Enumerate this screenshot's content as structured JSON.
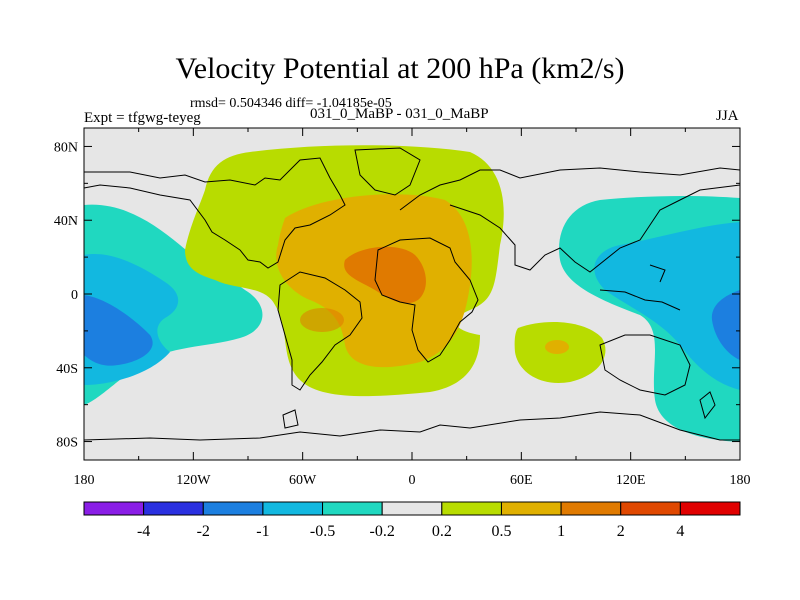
{
  "header": {
    "title": "Velocity Potential at 200 hPa (km2/s)",
    "stats": "rmsd= 0.504346 diff= -1.04185e-05",
    "expt": "Expt = tfgwg-teyeg",
    "cases": "031_0_MaBP - 031_0_MaBP",
    "season": "JJA"
  },
  "chart_data": {
    "type": "contour-map",
    "title": "Velocity Potential at 200 hPa (km2/s)",
    "units": "km2/s",
    "x_axis": {
      "range": [
        -180,
        180
      ],
      "ticks": [
        -180,
        -120,
        -60,
        0,
        60,
        120,
        180
      ],
      "tick_labels": [
        "180",
        "120W",
        "60W",
        "0",
        "60E",
        "120E",
        "180"
      ]
    },
    "y_axis": {
      "range": [
        -90,
        90
      ],
      "ticks": [
        80,
        40,
        0,
        -40,
        -80
      ],
      "tick_labels": [
        "80N",
        "40N",
        "0",
        "40S",
        "80S"
      ]
    },
    "colorbar": {
      "levels": [
        -4,
        -2,
        -1,
        -0.5,
        -0.2,
        0.2,
        0.5,
        1,
        2,
        4
      ],
      "labels": [
        "-4",
        "-2",
        "-1",
        "-0.5",
        "-0.2",
        "0.2",
        "0.5",
        "1",
        "2",
        "4"
      ],
      "colors": [
        "#8a1ee6",
        "#2a30e0",
        "#1c7fe0",
        "#12b8e0",
        "#20d8c0",
        "#e6e6e6",
        "#b8dc00",
        "#e0b000",
        "#e07a00",
        "#e04800",
        "#e00000"
      ]
    },
    "regions": [
      {
        "band": "0.2-0.5",
        "color": "#b8dc00",
        "description": "broad positive region over Atlantic/Africa/Europe"
      },
      {
        "band": "0.5-1",
        "color": "#e0b000",
        "description": "inner positive core"
      },
      {
        "band": "1-2",
        "color": "#e07a00",
        "description": "maximum near 20N 10W"
      },
      {
        "band": "-0.5 to -0.2",
        "color": "#20d8c0",
        "description": "Pacific negative regions"
      },
      {
        "band": "-1 to -0.5",
        "color": "#12b8e0",
        "description": "Pacific negative cores"
      },
      {
        "band": "-2 to -1",
        "color": "#1c7fe0",
        "description": "minima in western Pacific"
      }
    ]
  }
}
